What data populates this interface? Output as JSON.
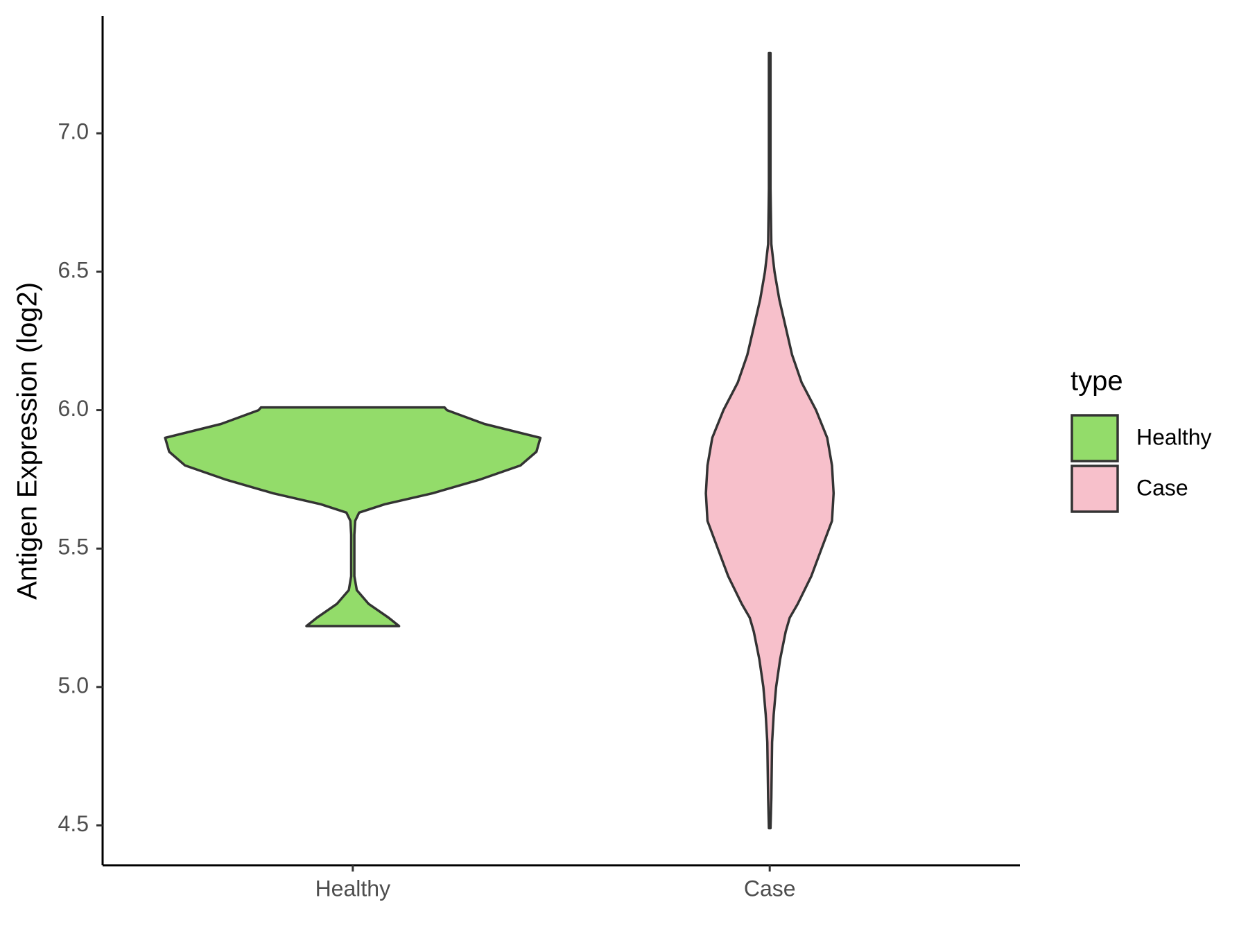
{
  "chart_data": {
    "type": "violin",
    "y_label": "Antigen Expression (log2)",
    "categories": [
      "Healthy",
      "Case"
    ],
    "legend_title": "type",
    "legend_position": "right",
    "ylim": [
      4.356,
      7.424
    ],
    "yticks": [
      4.5,
      {
        "value": 5,
        "label": "5.0"
      },
      5.5,
      {
        "value": 6,
        "label": "6.0"
      },
      6.5,
      {
        "value": 7,
        "label": "7.0"
      }
    ],
    "series": [
      {
        "name": "Healthy",
        "color": "#93dc6a",
        "y": [
          5.22,
          5.25,
          5.3,
          5.35,
          5.4,
          5.45,
          5.5,
          5.55,
          5.6,
          5.63,
          5.66,
          5.7,
          5.75,
          5.8,
          5.85,
          5.9,
          5.95,
          6.0,
          6.01
        ],
        "density": [
          58,
          45,
          20,
          5,
          2,
          2,
          2,
          2,
          3,
          8,
          40,
          100,
          160,
          210,
          230,
          235,
          165,
          118,
          115
        ]
      },
      {
        "name": "Case",
        "color": "#f7c0cb",
        "y": [
          4.49,
          4.6,
          4.8,
          4.9,
          5.0,
          5.1,
          5.2,
          5.25,
          5.3,
          5.4,
          5.5,
          5.6,
          5.7,
          5.8,
          5.9,
          6.0,
          6.1,
          6.2,
          6.3,
          6.4,
          6.5,
          6.6,
          6.8,
          7.0,
          7.29
        ],
        "density": [
          1,
          2,
          3,
          5,
          8,
          13,
          20,
          25,
          35,
          52,
          65,
          78,
          80,
          78,
          72,
          58,
          40,
          28,
          20,
          12,
          6,
          2,
          1,
          1,
          1
        ]
      }
    ]
  }
}
